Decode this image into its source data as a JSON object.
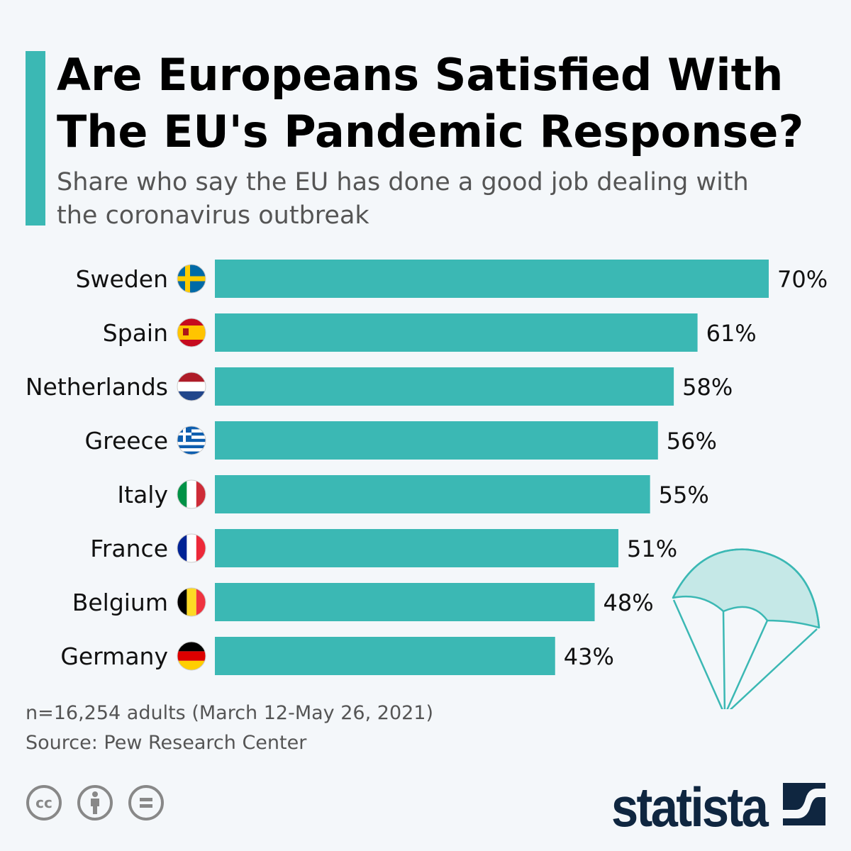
{
  "title": "Are Europeans Satisfied With The EU's Pandemic Response?",
  "subtitle": "Share who say the EU has done a good job dealing with the coronavirus outbreak",
  "chart_data": {
    "type": "bar",
    "orientation": "horizontal",
    "categories": [
      "Sweden",
      "Spain",
      "Netherlands",
      "Greece",
      "Italy",
      "France",
      "Belgium",
      "Germany"
    ],
    "values": [
      70,
      61,
      58,
      56,
      55,
      51,
      48,
      43
    ],
    "labels": [
      "70%",
      "61%",
      "58%",
      "56%",
      "55%",
      "51%",
      "48%",
      "43%"
    ],
    "unit": "%",
    "xlim": [
      0,
      70
    ],
    "grid": false,
    "bar_color": "#3bb8b4"
  },
  "footer": {
    "note": "n=16,254 adults (March 12-May 26, 2021)",
    "source": "Source: Pew Research Center"
  },
  "logo": "statista",
  "icons": [
    "creative-commons-icon",
    "attribution-icon",
    "no-derivatives-icon",
    "parachute-icon"
  ]
}
